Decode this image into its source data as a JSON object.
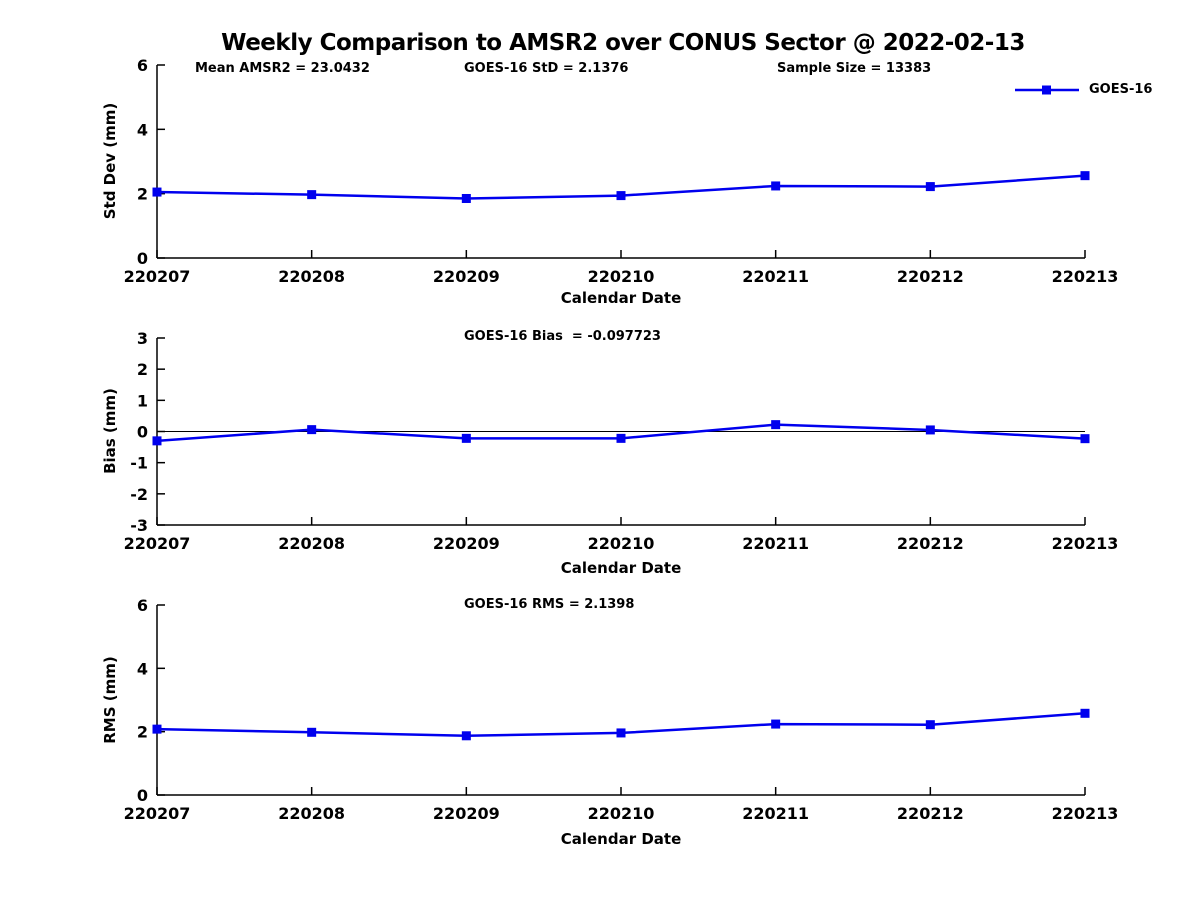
{
  "title": "Weekly Comparison to AMSR2 over CONUS Sector @ 2022-02-13",
  "header_stats": {
    "mean_amsr2": "Mean AMSR2 = 23.0432",
    "goes16_std": "GOES-16 StD = 2.1376",
    "sample_size": "Sample Size = 13383"
  },
  "legend": {
    "label": "GOES-16",
    "color": "#0000ee",
    "marker": "square",
    "position": "top-right"
  },
  "chart_data": [
    {
      "type": "line",
      "title": "",
      "ylabel": "Std Dev (mm)",
      "xlabel": "Calendar Date",
      "categories": [
        "220207",
        "220208",
        "220209",
        "220210",
        "220211",
        "220212",
        "220213"
      ],
      "series": [
        {
          "name": "GOES-16",
          "values": [
            2.05,
            1.97,
            1.85,
            1.94,
            2.24,
            2.22,
            2.56
          ]
        }
      ],
      "ylim": [
        0,
        6
      ],
      "yticks": [
        0,
        2,
        4,
        6
      ],
      "grid": false,
      "zero_line": false,
      "line_color": "#0000ee",
      "marker": "square"
    },
    {
      "type": "line",
      "title": "GOES-16 Bias  = -0.097723",
      "ylabel": "Bias (mm)",
      "xlabel": "Calendar Date",
      "categories": [
        "220207",
        "220208",
        "220209",
        "220210",
        "220211",
        "220212",
        "220213"
      ],
      "series": [
        {
          "name": "GOES-16",
          "values": [
            -0.3,
            0.06,
            -0.22,
            -0.22,
            0.22,
            0.05,
            -0.23
          ]
        }
      ],
      "ylim": [
        -3,
        3
      ],
      "yticks": [
        -3,
        -2,
        -1,
        0,
        1,
        2,
        3
      ],
      "grid": false,
      "zero_line": true,
      "line_color": "#0000ee",
      "marker": "square"
    },
    {
      "type": "line",
      "title": "GOES-16 RMS = 2.1398",
      "ylabel": "RMS (mm)",
      "xlabel": "Calendar Date",
      "categories": [
        "220207",
        "220208",
        "220209",
        "220210",
        "220211",
        "220212",
        "220213"
      ],
      "series": [
        {
          "name": "GOES-16",
          "values": [
            2.08,
            1.98,
            1.87,
            1.96,
            2.24,
            2.22,
            2.58
          ]
        }
      ],
      "ylim": [
        0,
        6
      ],
      "yticks": [
        0,
        2,
        4,
        6
      ],
      "grid": false,
      "zero_line": false,
      "line_color": "#0000ee",
      "marker": "square"
    }
  ]
}
